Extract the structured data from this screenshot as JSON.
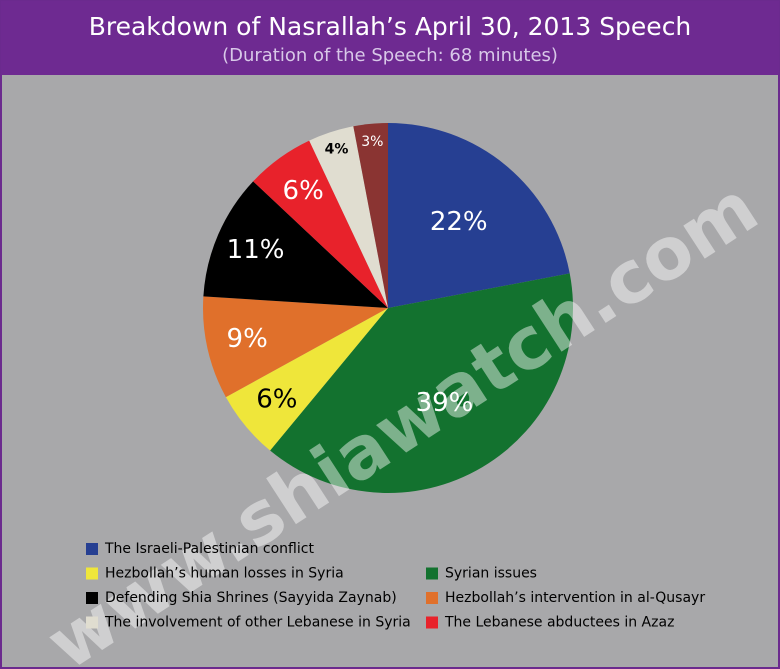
{
  "chart_data": {
    "type": "pie",
    "title": "Breakdown of Nasrallah’s  April 30, 2013 Speech",
    "subtitle": "(Duration of the Speech: 68 minutes)",
    "watermark": "www.shiawatch.com",
    "categories": [
      "The Israeli-Palestinian conflict",
      "Syrian issues",
      "Hezbollah’s human losses in Syria",
      "Hezbollah’s intervention in al-Qusayr",
      "Defending Shia Shrines (Sayyida Zaynab)",
      "The Lebanese abductees in Azaz",
      "The involvement of other Lebanese in Syria",
      null
    ],
    "values": [
      22,
      39,
      6,
      9,
      11,
      6,
      4,
      3
    ],
    "value_labels": [
      "22%",
      "39%",
      "6%",
      "9%",
      "11%",
      "6%",
      "4%",
      "3%"
    ],
    "colors": [
      "#263f92",
      "#13722f",
      "#efe63a",
      "#e0702b",
      "#000000",
      "#e8222b",
      "#e0ddd0",
      "#8a3432"
    ]
  }
}
